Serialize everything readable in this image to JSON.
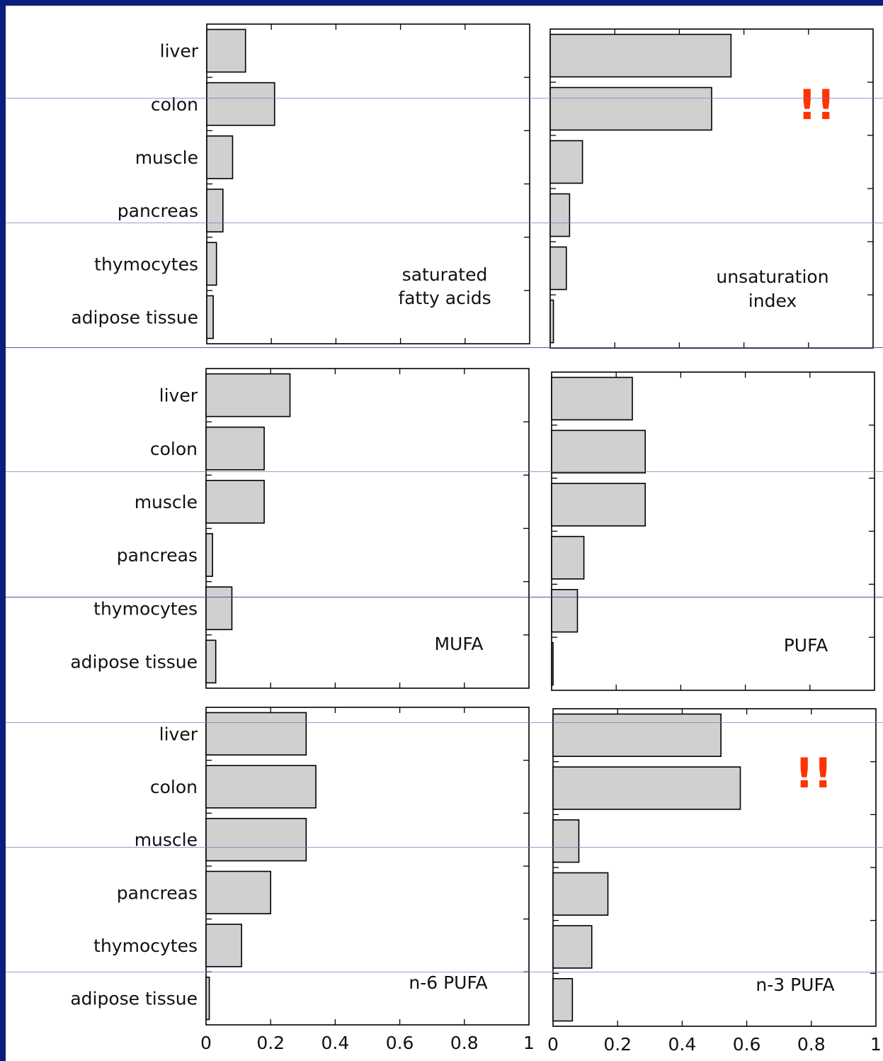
{
  "chart_data": {
    "type": "bar",
    "orientation": "horizontal",
    "categories": [
      "liver",
      "colon",
      "muscle",
      "pancreas",
      "thymocytes",
      "adipose tissue"
    ],
    "xlim": [
      0,
      1
    ],
    "x_ticks": [
      0,
      0.2,
      0.4,
      0.6,
      0.8,
      1
    ],
    "x_tick_labels": [
      "0",
      "0.2",
      "0.4",
      "0.6",
      "0.8",
      "1"
    ],
    "grid": false,
    "bar_color": "#d0d0d0",
    "annotation_color": "#ff3300",
    "panels": [
      {
        "label_lines": [
          "saturated",
          "fatty acids"
        ],
        "values": [
          0.12,
          0.21,
          0.08,
          0.05,
          0.03,
          0.02
        ],
        "annotation": ""
      },
      {
        "label_lines": [
          "unsaturation",
          "index"
        ],
        "values": [
          0.56,
          0.5,
          0.1,
          0.06,
          0.05,
          0.01
        ],
        "annotation": "!!"
      },
      {
        "label_lines": [
          "MUFA"
        ],
        "values": [
          0.26,
          0.18,
          0.18,
          0.02,
          0.08,
          0.03
        ],
        "annotation": ""
      },
      {
        "label_lines": [
          "PUFA"
        ],
        "values": [
          0.25,
          0.29,
          0.29,
          0.1,
          0.08,
          0
        ],
        "annotation": ""
      },
      {
        "label_lines": [
          "n-6 PUFA"
        ],
        "values": [
          0.31,
          0.34,
          0.31,
          0.2,
          0.11,
          0.01
        ],
        "annotation": ""
      },
      {
        "label_lines": [
          "n-3 PUFA"
        ],
        "values": [
          0.52,
          0.58,
          0.08,
          0.17,
          0.12,
          0.06
        ],
        "annotation": "!!"
      }
    ]
  }
}
